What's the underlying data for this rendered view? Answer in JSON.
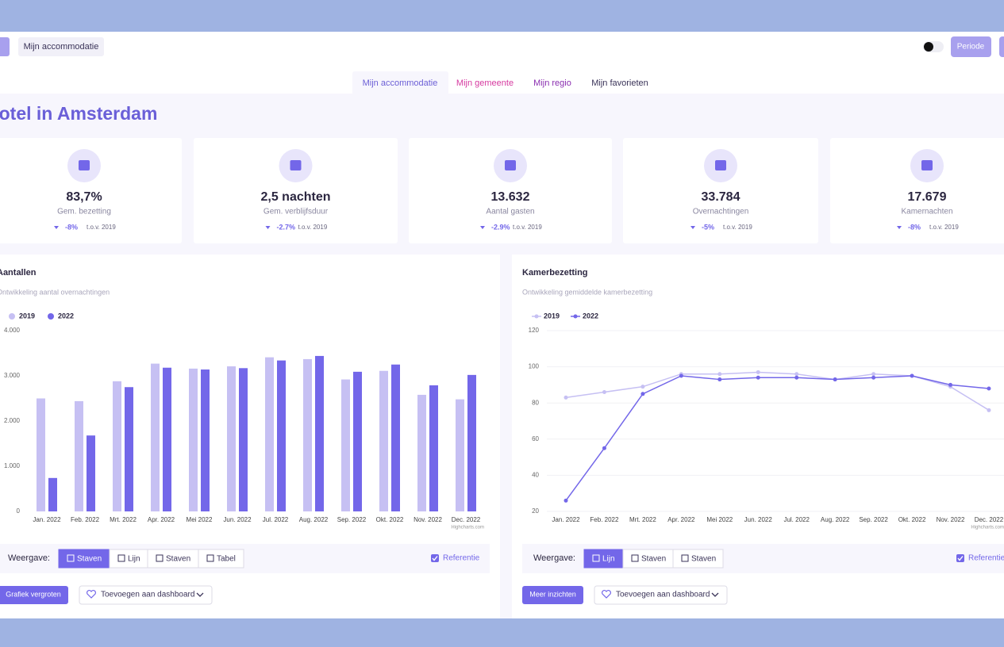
{
  "header": {
    "accommodation_button": "Mijn accommodatie",
    "period_button": "Periode"
  },
  "tabs": [
    "Mijn accommodatie",
    "Mijn gemeente",
    "Mijn regio",
    "Mijn favorieten"
  ],
  "title": "Hotel in Amsterdam",
  "kpis": [
    {
      "value": "83,7%",
      "label": "Gem. bezetting",
      "change": "-8%",
      "reference": "t.o.v. 2019"
    },
    {
      "value": "2,5 nachten",
      "label": "Gem. verblijfsduur",
      "change": "-2.7%",
      "reference": "t.o.v. 2019"
    },
    {
      "value": "13.632",
      "label": "Aantal gasten",
      "change": "-2.9%",
      "reference": "t.o.v. 2019"
    },
    {
      "value": "33.784",
      "label": "Overnachtingen",
      "change": "-5%",
      "reference": "t.o.v. 2019"
    },
    {
      "value": "17.679",
      "label": "Kamernachten",
      "change": "-8%",
      "reference": "t.o.v. 2019"
    }
  ],
  "chart_data": [
    {
      "type": "bar",
      "title": "Aantallen",
      "subtitle": "Ontwikkeling aantal overnachtingen",
      "credits": "Highcharts.com",
      "categories": [
        "Jan. 2022",
        "Feb. 2022",
        "Mrt. 2022",
        "Apr. 2022",
        "Mei 2022",
        "Jun. 2022",
        "Jul. 2022",
        "Aug. 2022",
        "Sep. 2022",
        "Okt. 2022",
        "Nov. 2022",
        "Dec. 2022"
      ],
      "series": [
        {
          "name": "2019",
          "color": "#c6c0f3",
          "values": [
            2500,
            2440,
            2880,
            3270,
            3160,
            3210,
            3410,
            3370,
            2920,
            3110,
            2580,
            2480
          ]
        },
        {
          "name": "2022",
          "color": "#7367e9",
          "values": [
            740,
            1680,
            2750,
            3180,
            3140,
            3170,
            3340,
            3440,
            3090,
            3250,
            2790,
            3020
          ]
        }
      ],
      "ylim": [
        0,
        4000
      ],
      "yticks": [
        0,
        {
          "value": 1000,
          "label": "1.000"
        },
        {
          "value": 2000,
          "label": "2.000"
        },
        {
          "value": 3000,
          "label": "3.000"
        },
        {
          "value": 4000,
          "label": "4.000"
        }
      ],
      "grid": false
    },
    {
      "type": "line",
      "title": "Kamerbezetting",
      "subtitle": "Ontwikkeling gemiddelde kamerbezetting",
      "credits": "Highcharts.com",
      "categories": [
        "Jan. 2022",
        "Feb. 2022",
        "Mrt. 2022",
        "Apr. 2022",
        "Mei 2022",
        "Jun. 2022",
        "Jul. 2022",
        "Aug. 2022",
        "Sep. 2022",
        "Okt. 2022",
        "Nov. 2022",
        "Dec. 2022"
      ],
      "series": [
        {
          "name": "2019",
          "color": "#c6c0f3",
          "values": [
            83,
            86,
            89,
            96,
            96,
            97,
            96,
            93,
            96,
            95,
            89,
            76
          ]
        },
        {
          "name": "2022",
          "color": "#7367e9",
          "values": [
            26,
            55,
            85,
            95,
            93,
            94,
            94,
            93,
            94,
            95,
            90,
            88
          ]
        }
      ],
      "ylim": [
        20,
        120
      ],
      "yticks": [
        20,
        40,
        60,
        80,
        100,
        120
      ],
      "grid": true
    }
  ],
  "controls": [
    {
      "view_label": "Weergave:",
      "view_buttons": [
        "Staven",
        "Lijn",
        "Staven",
        "Tabel"
      ],
      "reference": "Referentie",
      "primary_button": "Grafiek vergroten",
      "dashboard_button": "Toevoegen aan dashboard"
    },
    {
      "view_label": "Weergave:",
      "view_buttons": [
        "Lijn",
        "Staven",
        "Staven"
      ],
      "reference": "Referentie",
      "primary_button": "Meer inzichten",
      "dashboard_button": "Toevoegen aan dashboard"
    }
  ]
}
